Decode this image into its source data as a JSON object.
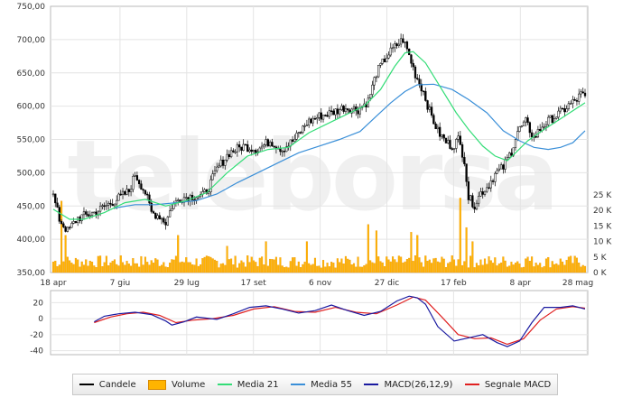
{
  "chart_data": {
    "type": "candlestick",
    "watermark": "teleborsa",
    "x_ticks": [
      "18 apr",
      "7 giu",
      "29 lug",
      "17 set",
      "6 nov",
      "27 dic",
      "17 feb",
      "8 apr",
      "28 mag"
    ],
    "price_axis": {
      "ylim": [
        350,
        750
      ],
      "ticks": [
        "350,00",
        "400,00",
        "450,00",
        "500,00",
        "550,00",
        "600,00",
        "650,00",
        "700,00",
        "750,00"
      ]
    },
    "volume_axis": {
      "ylim": [
        0,
        30000
      ],
      "ticks": [
        "0 K",
        "5 K",
        "10 K",
        "15 K",
        "20 K",
        "25 K"
      ]
    },
    "macd_axis": {
      "ylim": [
        -45,
        35
      ],
      "ticks": [
        "20",
        "0",
        "-20",
        "-40"
      ]
    },
    "price_anchors": [
      [
        0,
        465
      ],
      [
        3,
        430
      ],
      [
        7,
        412
      ],
      [
        12,
        432
      ],
      [
        20,
        440
      ],
      [
        30,
        458
      ],
      [
        37,
        472
      ],
      [
        40,
        498
      ],
      [
        45,
        470
      ],
      [
        48,
        440
      ],
      [
        52,
        435
      ],
      [
        55,
        425
      ],
      [
        58,
        450
      ],
      [
        62,
        462
      ],
      [
        68,
        465
      ],
      [
        73,
        465
      ],
      [
        76,
        478
      ],
      [
        80,
        505
      ],
      [
        86,
        530
      ],
      [
        93,
        540
      ],
      [
        100,
        535
      ],
      [
        106,
        548
      ],
      [
        112,
        535
      ],
      [
        118,
        550
      ],
      [
        124,
        575
      ],
      [
        130,
        585
      ],
      [
        136,
        590
      ],
      [
        142,
        598
      ],
      [
        149,
        595
      ],
      [
        154,
        608
      ],
      [
        158,
        650
      ],
      [
        163,
        675
      ],
      [
        168,
        692
      ],
      [
        171,
        700
      ],
      [
        173,
        685
      ],
      [
        177,
        648
      ],
      [
        181,
        622
      ],
      [
        184,
        592
      ],
      [
        188,
        562
      ],
      [
        192,
        546
      ],
      [
        195,
        540
      ],
      [
        198,
        550
      ],
      [
        201,
        520
      ],
      [
        203,
        462
      ],
      [
        206,
        452
      ],
      [
        209,
        470
      ],
      [
        212,
        478
      ],
      [
        216,
        498
      ],
      [
        220,
        508
      ],
      [
        224,
        533
      ],
      [
        227,
        562
      ],
      [
        231,
        576
      ],
      [
        235,
        552
      ],
      [
        239,
        570
      ],
      [
        244,
        582
      ],
      [
        248,
        590
      ],
      [
        252,
        601
      ],
      [
        256,
        610
      ],
      [
        258,
        618
      ],
      [
        260,
        612
      ]
    ],
    "volume_spikes": [
      [
        4,
        23000
      ],
      [
        6,
        12000
      ],
      [
        61,
        12000
      ],
      [
        85,
        8500
      ],
      [
        104,
        10000
      ],
      [
        124,
        10000
      ],
      [
        154,
        15500
      ],
      [
        158,
        13500
      ],
      [
        175,
        13000
      ],
      [
        178,
        12000
      ],
      [
        199,
        24000
      ],
      [
        202,
        14500
      ],
      [
        205,
        10000
      ],
      [
        232,
        5000
      ]
    ],
    "ma21": [
      [
        0,
        445
      ],
      [
        8,
        430
      ],
      [
        15,
        430
      ],
      [
        25,
        440
      ],
      [
        35,
        455
      ],
      [
        45,
        460
      ],
      [
        55,
        450
      ],
      [
        65,
        458
      ],
      [
        75,
        470
      ],
      [
        85,
        500
      ],
      [
        95,
        525
      ],
      [
        105,
        535
      ],
      [
        115,
        538
      ],
      [
        125,
        560
      ],
      [
        135,
        575
      ],
      [
        145,
        590
      ],
      [
        152,
        600
      ],
      [
        160,
        625
      ],
      [
        167,
        660
      ],
      [
        172,
        680
      ],
      [
        176,
        682
      ],
      [
        182,
        665
      ],
      [
        190,
        625
      ],
      [
        197,
        590
      ],
      [
        203,
        565
      ],
      [
        210,
        540
      ],
      [
        216,
        525
      ],
      [
        222,
        518
      ],
      [
        226,
        530
      ],
      [
        232,
        548
      ],
      [
        240,
        565
      ],
      [
        250,
        585
      ],
      [
        260,
        605
      ]
    ],
    "ma55": [
      [
        30,
        447
      ],
      [
        40,
        452
      ],
      [
        50,
        452
      ],
      [
        60,
        455
      ],
      [
        70,
        458
      ],
      [
        80,
        468
      ],
      [
        90,
        485
      ],
      [
        100,
        500
      ],
      [
        110,
        515
      ],
      [
        120,
        530
      ],
      [
        130,
        540
      ],
      [
        140,
        550
      ],
      [
        150,
        562
      ],
      [
        158,
        585
      ],
      [
        165,
        605
      ],
      [
        172,
        622
      ],
      [
        178,
        632
      ],
      [
        186,
        633
      ],
      [
        195,
        625
      ],
      [
        203,
        610
      ],
      [
        212,
        590
      ],
      [
        220,
        563
      ],
      [
        228,
        548
      ],
      [
        235,
        538
      ],
      [
        242,
        535
      ],
      [
        248,
        538
      ],
      [
        254,
        545
      ],
      [
        260,
        563
      ]
    ],
    "macd": [
      [
        20,
        -4
      ],
      [
        25,
        3
      ],
      [
        32,
        6
      ],
      [
        40,
        8
      ],
      [
        48,
        5
      ],
      [
        55,
        -3
      ],
      [
        58,
        -8
      ],
      [
        64,
        -4
      ],
      [
        70,
        2
      ],
      [
        80,
        -1
      ],
      [
        88,
        6
      ],
      [
        96,
        14
      ],
      [
        104,
        16
      ],
      [
        112,
        12
      ],
      [
        120,
        7
      ],
      [
        128,
        10
      ],
      [
        136,
        17
      ],
      [
        144,
        10
      ],
      [
        152,
        4
      ],
      [
        160,
        9
      ],
      [
        168,
        22
      ],
      [
        174,
        28
      ],
      [
        178,
        26
      ],
      [
        182,
        18
      ],
      [
        188,
        -10
      ],
      [
        196,
        -28
      ],
      [
        203,
        -24
      ],
      [
        210,
        -20
      ],
      [
        217,
        -30
      ],
      [
        222,
        -35
      ],
      [
        228,
        -28
      ],
      [
        234,
        -5
      ],
      [
        240,
        14
      ],
      [
        248,
        14
      ],
      [
        254,
        16
      ],
      [
        260,
        12
      ]
    ],
    "macd_signal": [
      [
        20,
        -5
      ],
      [
        28,
        2
      ],
      [
        36,
        6
      ],
      [
        44,
        8
      ],
      [
        52,
        4
      ],
      [
        60,
        -5
      ],
      [
        68,
        -2
      ],
      [
        78,
        0
      ],
      [
        88,
        4
      ],
      [
        98,
        12
      ],
      [
        108,
        15
      ],
      [
        118,
        9
      ],
      [
        128,
        8
      ],
      [
        138,
        14
      ],
      [
        148,
        8
      ],
      [
        158,
        6
      ],
      [
        168,
        17
      ],
      [
        176,
        27
      ],
      [
        182,
        23
      ],
      [
        190,
        2
      ],
      [
        198,
        -20
      ],
      [
        206,
        -25
      ],
      [
        214,
        -24
      ],
      [
        222,
        -32
      ],
      [
        230,
        -25
      ],
      [
        238,
        -2
      ],
      [
        246,
        12
      ],
      [
        254,
        15
      ],
      [
        260,
        13
      ]
    ],
    "legend": [
      {
        "name": "Candele",
        "color": "#000000",
        "kind": "line"
      },
      {
        "name": "Volume",
        "color": "#ffb400",
        "kind": "box"
      },
      {
        "name": "Media 21",
        "color": "#33dd77",
        "kind": "line"
      },
      {
        "name": "Media 55",
        "color": "#3a8fd8",
        "kind": "line"
      },
      {
        "name": "MACD(26,12,9)",
        "color": "#1a1aa0",
        "kind": "line"
      },
      {
        "name": "Segnale MACD",
        "color": "#e02020",
        "kind": "line"
      }
    ]
  }
}
